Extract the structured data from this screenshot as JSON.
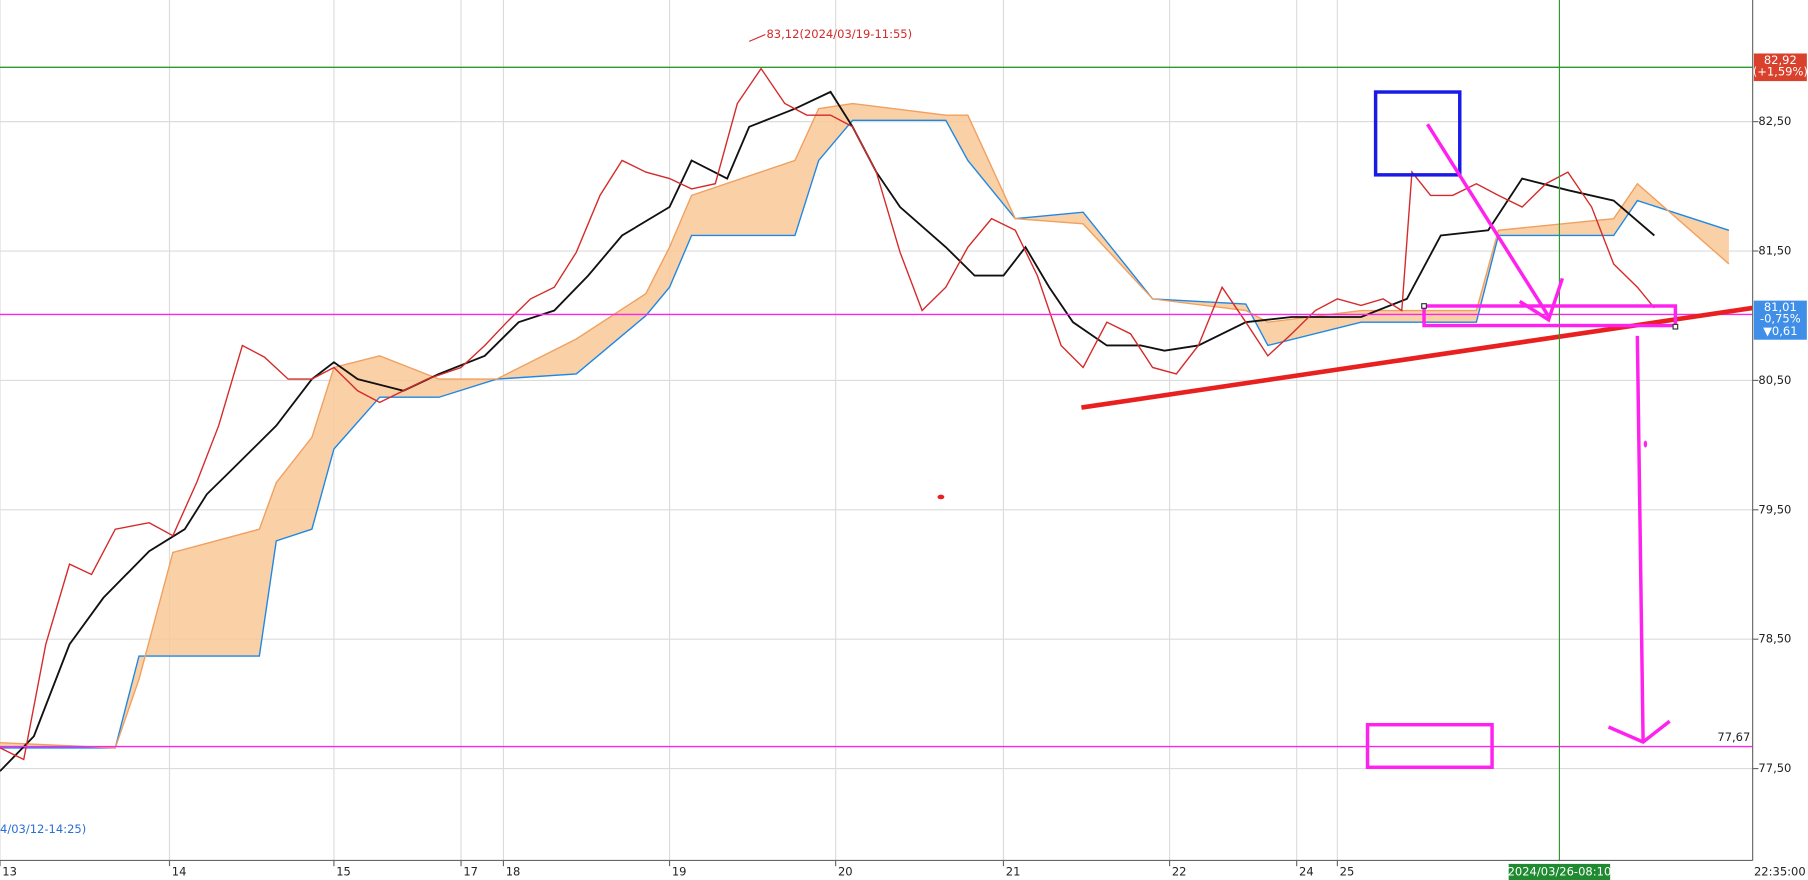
{
  "chart_data": {
    "type": "line",
    "xlim": [
      0,
      10.34
    ],
    "xticks": [
      {
        "value": 0,
        "label": "13"
      },
      {
        "value": 1.0,
        "label": "14"
      },
      {
        "value": 1.97,
        "label": "15"
      },
      {
        "value": 2.72,
        "label": "17"
      },
      {
        "value": 2.97,
        "label": "18"
      },
      {
        "value": 3.95,
        "label": "19"
      },
      {
        "value": 4.93,
        "label": "20"
      },
      {
        "value": 5.92,
        "label": "21"
      },
      {
        "value": 6.9,
        "label": "22"
      },
      {
        "value": 7.65,
        "label": "24"
      },
      {
        "value": 7.89,
        "label": "25"
      }
    ],
    "ylim": [
      76.79,
      83.44
    ],
    "yticks": [
      {
        "value": 77.5,
        "label": "77,50"
      },
      {
        "value": 78.5,
        "label": "78,50"
      },
      {
        "value": 79.5,
        "label": "79,50"
      },
      {
        "value": 80.5,
        "label": "80,50"
      },
      {
        "value": 81.5,
        "label": "81,50"
      },
      {
        "value": 82.5,
        "label": "82,50"
      }
    ],
    "grid": true,
    "cloud_color": "#f9c896",
    "series": [
      {
        "color": "#d42a2a",
        "x": [
          0,
          0.14,
          0.27,
          0.41,
          0.54,
          0.68,
          0.88,
          1.02,
          1.16,
          1.29,
          1.43,
          1.56,
          1.7,
          1.84,
          1.97,
          2.11,
          2.24,
          2.38,
          2.52,
          2.72,
          2.86,
          2.99,
          3.13,
          3.27,
          3.4,
          3.54,
          3.67,
          3.81,
          3.95,
          4.08,
          4.22,
          4.35,
          4.49,
          4.63,
          4.76,
          4.9,
          5.03,
          5.17,
          5.31,
          5.44,
          5.58,
          5.71,
          5.85,
          5.99,
          6.12,
          6.26,
          6.39,
          6.53,
          6.67,
          6.8,
          6.94,
          7.07,
          7.21,
          7.35,
          7.48,
          7.62,
          7.76,
          7.89,
          8.03,
          8.16,
          8.27,
          8.33,
          8.44,
          8.57,
          8.71,
          8.84,
          8.98,
          9.12,
          9.25,
          9.39,
          9.52,
          9.66,
          9.76
        ],
        "values": [
          77.66,
          77.57,
          78.46,
          79.08,
          79.0,
          79.35,
          79.4,
          79.3,
          79.71,
          80.15,
          80.77,
          80.68,
          80.51,
          80.51,
          80.6,
          80.42,
          80.33,
          80.42,
          80.51,
          80.6,
          80.77,
          80.95,
          81.13,
          81.22,
          81.49,
          81.93,
          82.2,
          82.11,
          82.06,
          81.98,
          82.02,
          82.64,
          82.91,
          82.64,
          82.55,
          82.55,
          82.46,
          82.11,
          81.49,
          81.04,
          81.22,
          81.53,
          81.75,
          81.66,
          81.31,
          80.77,
          80.6,
          80.95,
          80.86,
          80.6,
          80.55,
          80.77,
          81.22,
          80.95,
          80.69,
          80.86,
          81.04,
          81.13,
          81.08,
          81.13,
          81.04,
          82.11,
          81.93,
          81.93,
          82.02,
          81.93,
          81.84,
          82.02,
          82.11,
          81.84,
          81.4,
          81.22,
          81.06
        ]
      },
      {
        "color": "#111111",
        "x": [
          0,
          0.2,
          0.41,
          0.61,
          0.88,
          1.09,
          1.22,
          1.36,
          1.63,
          1.84,
          1.97,
          2.11,
          2.38,
          2.59,
          2.86,
          3.06,
          3.27,
          3.47,
          3.67,
          3.95,
          4.08,
          4.29,
          4.42,
          4.69,
          4.9,
          5.03,
          5.17,
          5.31,
          5.58,
          5.75,
          5.92,
          6.05,
          6.19,
          6.33,
          6.53,
          6.73,
          6.87,
          7.07,
          7.35,
          7.62,
          8.03,
          8.3,
          8.5,
          8.78,
          8.98,
          9.25,
          9.52,
          9.76
        ],
        "values": [
          77.48,
          77.75,
          78.46,
          78.82,
          79.18,
          79.35,
          79.62,
          79.8,
          80.15,
          80.51,
          80.64,
          80.51,
          80.42,
          80.55,
          80.69,
          80.95,
          81.04,
          81.31,
          81.62,
          81.84,
          82.2,
          82.06,
          82.46,
          82.6,
          82.73,
          82.46,
          82.11,
          81.84,
          81.53,
          81.31,
          81.31,
          81.53,
          81.22,
          80.95,
          80.77,
          80.77,
          80.73,
          80.77,
          80.95,
          80.99,
          80.99,
          81.13,
          81.62,
          81.66,
          82.06,
          81.97,
          81.89,
          81.62
        ]
      },
      {
        "color": "#f0a060",
        "x": [
          0,
          0.68,
          0.82,
          1.02,
          1.53,
          1.63,
          1.84,
          1.97,
          2.24,
          2.59,
          2.93,
          3.4,
          3.81,
          3.95,
          4.08,
          4.69,
          4.83,
          5.03,
          5.58,
          5.71,
          5.99,
          6.39,
          6.8,
          7.35,
          7.48,
          8.03,
          8.71,
          8.84,
          9.52,
          9.66,
          10.2
        ],
        "values": [
          77.7,
          77.66,
          78.19,
          79.17,
          79.35,
          79.71,
          80.06,
          80.6,
          80.69,
          80.51,
          80.51,
          80.82,
          81.17,
          81.53,
          81.93,
          82.2,
          82.6,
          82.64,
          82.55,
          82.55,
          81.75,
          81.71,
          81.13,
          81.04,
          80.95,
          81.04,
          81.04,
          81.66,
          81.75,
          82.02,
          81.4
        ]
      },
      {
        "color": "#1e88e5",
        "x": [
          0,
          0.68,
          0.82,
          1.02,
          1.53,
          1.63,
          1.84,
          1.97,
          2.24,
          2.59,
          2.93,
          3.4,
          3.81,
          3.95,
          4.08,
          4.69,
          4.83,
          5.03,
          5.58,
          5.71,
          5.99,
          6.39,
          6.8,
          7.35,
          7.48,
          8.03,
          8.71,
          8.84,
          9.52,
          9.66,
          10.2
        ],
        "values": [
          77.66,
          77.66,
          78.37,
          78.37,
          78.37,
          79.26,
          79.35,
          79.97,
          80.37,
          80.37,
          80.51,
          80.55,
          81.0,
          81.22,
          81.62,
          81.62,
          82.2,
          82.51,
          82.51,
          82.2,
          81.75,
          81.8,
          81.13,
          81.09,
          80.77,
          80.95,
          80.95,
          81.62,
          81.62,
          81.89,
          81.66
        ]
      }
    ],
    "trendline": {
      "color": "#e82020",
      "x": [
        6.38,
        10.34
      ],
      "values": [
        80.29,
        81.06
      ]
    },
    "peak": {
      "x": 4.42,
      "value": 83.12,
      "text": "83,12(2024/03/19-11:55)"
    },
    "levels": [
      {
        "value": 82.92,
        "color": "#2e9a2e",
        "label": "82,92",
        "change": "(+1,59%)",
        "box": "#d9412c"
      },
      {
        "value": 81.01,
        "color": "#ff22ee",
        "label": "81,01",
        "change": "-0,75%",
        "diff": "▼0,61",
        "box": "#3f8ee8"
      },
      {
        "value": 77.67,
        "color": "#ff22ee",
        "label": "77,67"
      }
    ],
    "cursor": {
      "x": 9.2,
      "label": "2024/03/26-08:10"
    },
    "start_label": "4/03/12-14:25)",
    "last_time": "22:35:00"
  }
}
